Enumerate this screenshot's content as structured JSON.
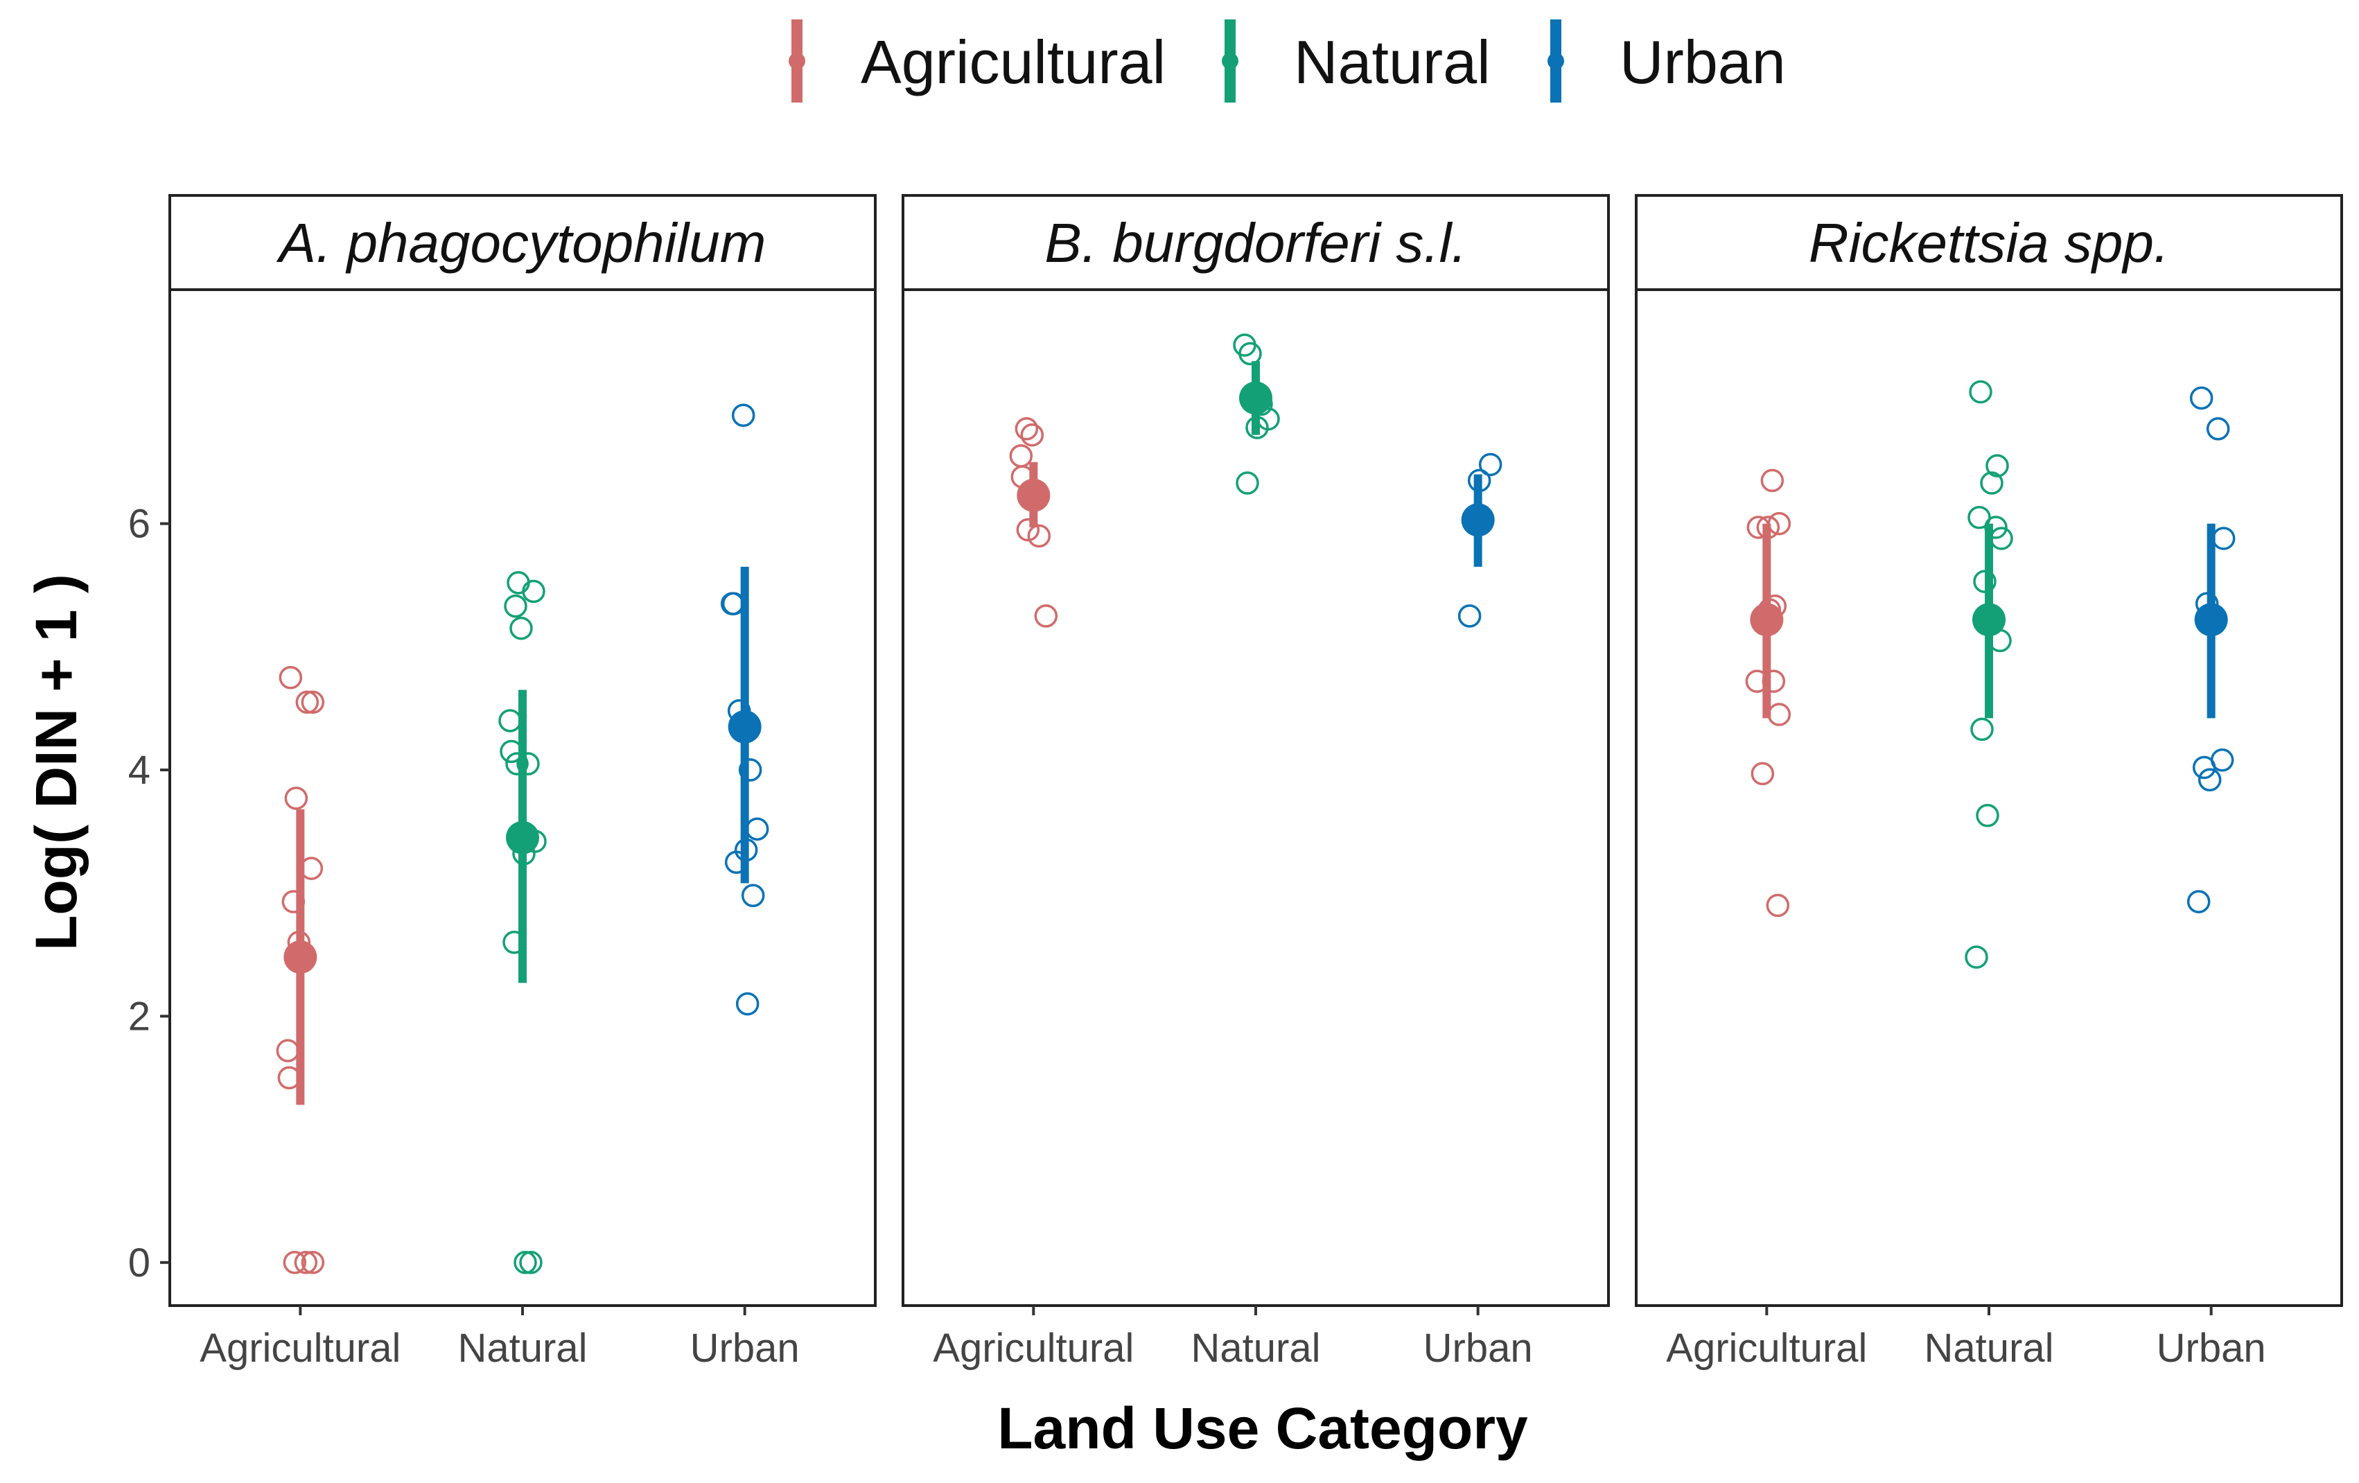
{
  "chart_data": {
    "type": "scatter",
    "subtype": "faceted jittered points with mean and interval",
    "xlabel": "Land Use Category",
    "ylabel": "Log( DIN + 1 )",
    "ylim": [
      -0.35,
      7.9
    ],
    "yticks": [
      0,
      2,
      4,
      6
    ],
    "categories": [
      "Agricultural",
      "Natural",
      "Urban"
    ],
    "colors": {
      "Agricultural": "#D16B6B",
      "Natural": "#14A077",
      "Urban": "#0A72B5"
    },
    "legend": {
      "placement": "top-center",
      "entries": [
        "Agricultural",
        "Natural",
        "Urban"
      ]
    },
    "facets": [
      {
        "title": "A. phagocytophilum",
        "groups": [
          {
            "category": "Agricultural",
            "mean": 2.48,
            "lower": 1.28,
            "upper": 3.68,
            "points": [
              4.75,
              4.55,
              4.55,
              3.77,
              3.2,
              2.93,
              2.6,
              1.72,
              1.5,
              0.0,
              0.0,
              0.0
            ]
          },
          {
            "category": "Natural",
            "mean": 3.45,
            "lower": 2.27,
            "upper": 4.65,
            "points": [
              5.52,
              5.45,
              5.33,
              5.15,
              4.4,
              4.15,
              4.05,
              4.05,
              3.42,
              3.32,
              2.6,
              0.0,
              0.0
            ]
          },
          {
            "category": "Urban",
            "mean": 4.35,
            "lower": 3.08,
            "upper": 5.65,
            "points": [
              6.88,
              5.35,
              5.35,
              4.48,
              4.0,
              3.52,
              3.35,
              3.25,
              2.98,
              2.1
            ]
          }
        ]
      },
      {
        "title": "B. burgdorferi s.l.",
        "groups": [
          {
            "category": "Agricultural",
            "mean": 6.23,
            "lower": 5.97,
            "upper": 6.5,
            "points": [
              6.77,
              6.72,
              6.55,
              6.38,
              5.95,
              5.9,
              5.25
            ]
          },
          {
            "category": "Natural",
            "mean": 7.02,
            "lower": 6.72,
            "upper": 7.32,
            "points": [
              7.45,
              7.38,
              6.97,
              6.85,
              6.78,
              6.33
            ]
          },
          {
            "category": "Urban",
            "mean": 6.03,
            "lower": 5.65,
            "upper": 6.4,
            "points": [
              6.48,
              6.35,
              5.25
            ]
          }
        ]
      },
      {
        "title": "Rickettsia spp.",
        "groups": [
          {
            "category": "Agricultural",
            "mean": 5.22,
            "lower": 4.42,
            "upper": 6.0,
            "points": [
              6.35,
              6.0,
              5.97,
              5.97,
              5.33,
              5.3,
              4.72,
              4.72,
              4.45,
              3.97,
              2.9
            ]
          },
          {
            "category": "Natural",
            "mean": 5.22,
            "lower": 4.42,
            "upper": 6.0,
            "points": [
              7.07,
              6.47,
              6.33,
              6.05,
              5.97,
              5.88,
              5.53,
              5.05,
              4.33,
              3.63,
              2.48
            ]
          },
          {
            "category": "Urban",
            "mean": 5.22,
            "lower": 4.42,
            "upper": 6.0,
            "points": [
              7.02,
              6.77,
              5.88,
              5.35,
              4.08,
              4.02,
              3.92,
              2.93
            ]
          }
        ]
      }
    ]
  }
}
